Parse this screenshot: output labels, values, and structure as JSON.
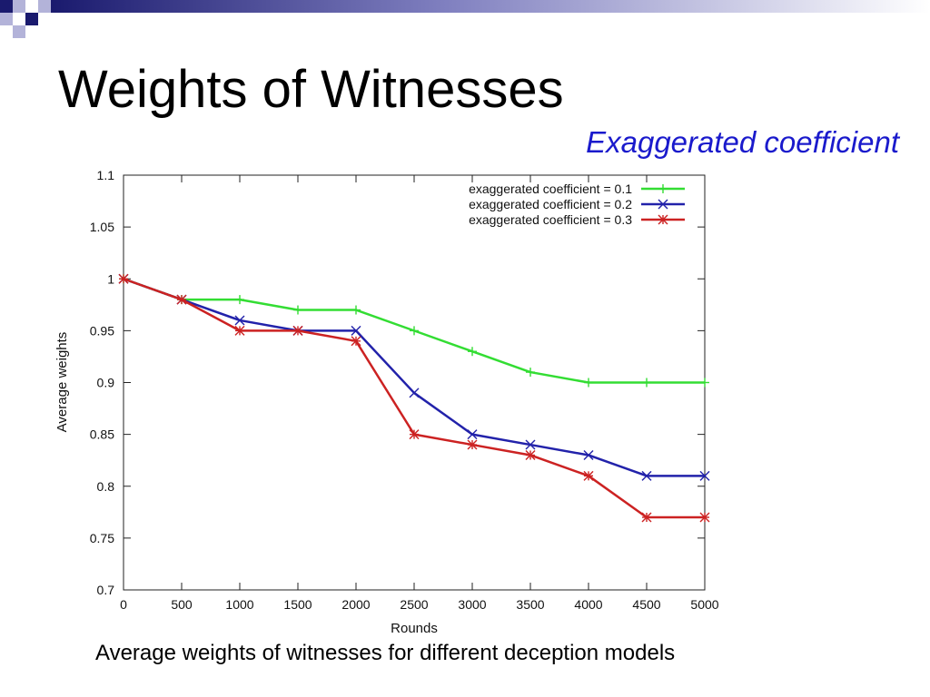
{
  "slide": {
    "title": "Weights of Witnesses",
    "subtitle": "Exaggerated coefficient",
    "caption": "Average weights of witnesses for different deception models"
  },
  "colors": {
    "deco_navy": "#1a1a6e",
    "deco_light": "#b3b3d9",
    "subtitle": "#1a1acc"
  },
  "chart_data": {
    "type": "line",
    "title": "",
    "xlabel": "Rounds",
    "ylabel": "Average weights",
    "x": [
      0,
      500,
      1000,
      1500,
      2000,
      2500,
      3000,
      3500,
      4000,
      4500,
      5000
    ],
    "xlim": [
      0,
      5000
    ],
    "ylim": [
      0.7,
      1.1
    ],
    "x_ticks": [
      0,
      500,
      1000,
      1500,
      2000,
      2500,
      3000,
      3500,
      4000,
      4500,
      5000
    ],
    "x_tick_labels": [
      "0",
      "500",
      "1000",
      "1500",
      "2000",
      "2500",
      "3000",
      "3500",
      "4000",
      "4500",
      "5000"
    ],
    "y_ticks": [
      0.7,
      0.75,
      0.8,
      0.85,
      0.9,
      0.95,
      1.0,
      1.05,
      1.1
    ],
    "y_tick_labels": [
      "0.7",
      "0.75",
      "0.8",
      "0.85",
      "0.9",
      "0.95",
      "1",
      "1.05",
      "1.1"
    ],
    "grid": false,
    "legend_position": "top-right",
    "series": [
      {
        "name": "exaggerated coefficient = 0.1",
        "color": "#33dd33",
        "marker": "plus",
        "values": [
          1.0,
          0.98,
          0.98,
          0.97,
          0.97,
          0.95,
          0.93,
          0.91,
          0.9,
          0.9,
          0.9
        ]
      },
      {
        "name": "exaggerated coefficient = 0.2",
        "color": "#2222aa",
        "marker": "x",
        "values": [
          1.0,
          0.98,
          0.96,
          0.95,
          0.95,
          0.89,
          0.85,
          0.84,
          0.83,
          0.81,
          0.81
        ]
      },
      {
        "name": "exaggerated coefficient = 0.3",
        "color": "#cc2222",
        "marker": "star",
        "values": [
          1.0,
          0.98,
          0.95,
          0.95,
          0.94,
          0.85,
          0.84,
          0.83,
          0.81,
          0.77,
          0.77
        ]
      }
    ]
  }
}
